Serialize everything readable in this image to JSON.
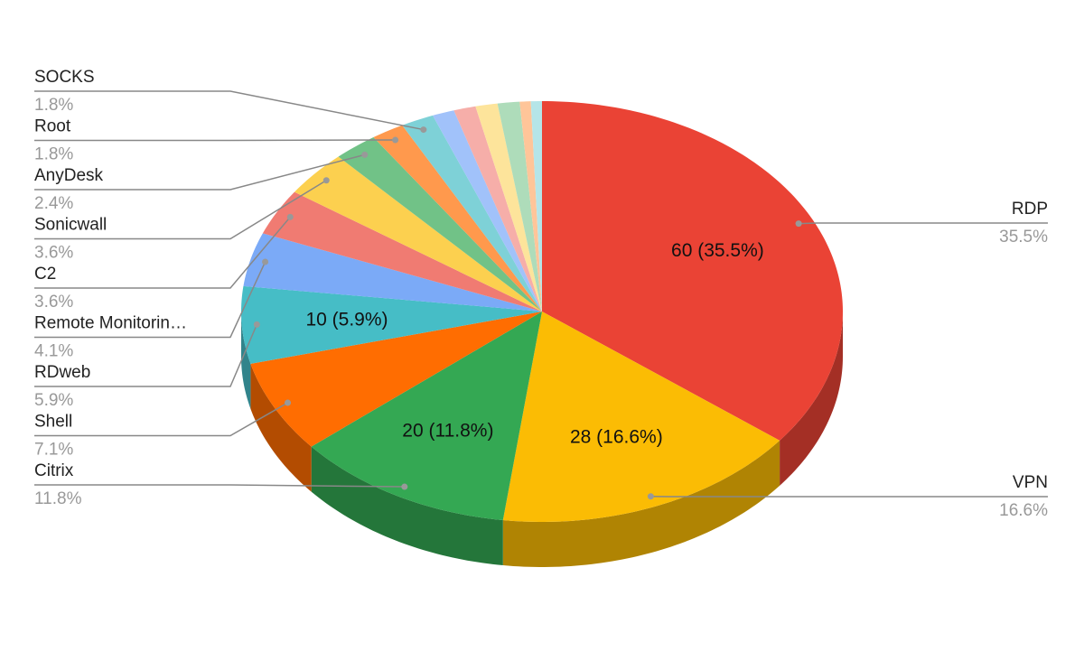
{
  "chart_data": {
    "type": "pie",
    "categories": [
      "RDP",
      "VPN",
      "Citrix",
      "Shell",
      "RDweb",
      "Remote Monitorin…",
      "C2",
      "Sonicwall",
      "AnyDesk",
      "Root",
      "SOCKS",
      null,
      null,
      null,
      null,
      null,
      null
    ],
    "values": [
      60,
      28,
      20,
      12,
      10,
      7,
      6,
      6,
      4,
      3,
      3,
      2,
      2,
      2,
      2,
      1,
      1
    ],
    "value_labels": [
      "60 (35.5%)",
      "28 (16.6%)",
      "20 (11.8%)",
      null,
      "10 (5.9%)",
      null,
      null,
      null,
      null,
      null,
      null,
      null,
      null,
      null,
      null,
      null,
      null
    ],
    "percent_labels": [
      "35.5%",
      "16.6%",
      "11.8%",
      "7.1%",
      "5.9%",
      "4.1%",
      "3.6%",
      "3.6%",
      "2.4%",
      "1.8%",
      "1.8%",
      null,
      null,
      null,
      null,
      null,
      null
    ],
    "colors": [
      "#ea4335",
      "#fbbc04",
      "#34a853",
      "#ff6d01",
      "#46bdc6",
      "#7baaf7",
      "#f07b72",
      "#fcd04f",
      "#71c287",
      "#ff994d",
      "#7ed1d7",
      "#a1c2fa",
      "#f6aea9",
      "#fde49b",
      "#aedcba",
      "#ffc599",
      "#b5e5e8"
    ]
  }
}
